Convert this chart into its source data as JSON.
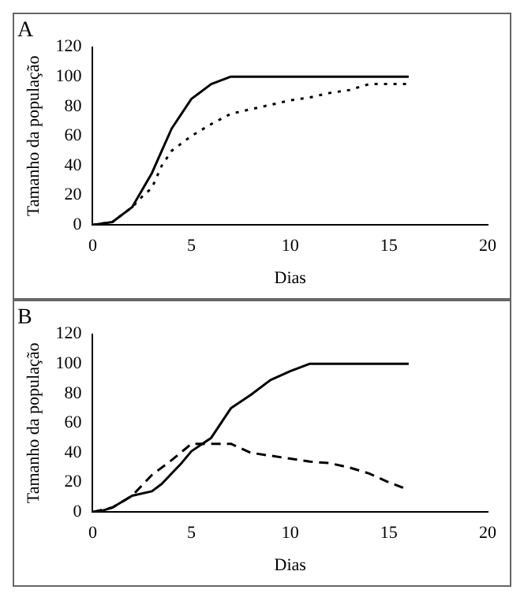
{
  "chart_data": [
    {
      "type": "line",
      "title": "A",
      "xlabel": "Dias",
      "ylabel": "Tamanho da população",
      "xlim": [
        0,
        20
      ],
      "xticks": [
        0,
        5,
        10,
        15,
        20
      ],
      "ylim": [
        0,
        120
      ],
      "yticks": [
        0,
        20,
        40,
        60,
        80,
        100,
        120
      ],
      "grid": false,
      "legend": false,
      "marker": "none",
      "series": [
        {
          "color": "#000000",
          "line_style": "solid",
          "x": [
            0,
            1,
            2,
            3,
            3.5,
            4,
            5,
            6,
            7,
            16
          ],
          "values": [
            0,
            2,
            12,
            35,
            50,
            65,
            85,
            95,
            100,
            100
          ]
        },
        {
          "color": "#000000",
          "line_style": "dotted",
          "x": [
            0,
            1,
            2,
            2.5,
            3,
            3.5,
            4,
            5,
            6,
            7,
            8,
            9,
            10,
            11,
            12,
            13,
            14,
            15,
            16
          ],
          "values": [
            0,
            2,
            12,
            19,
            25,
            40,
            50,
            60,
            68,
            75,
            78,
            81,
            84,
            86,
            89,
            91,
            95,
            95,
            95
          ]
        }
      ]
    },
    {
      "type": "line",
      "title": "B",
      "xlabel": "Dias",
      "ylabel": "Tamanho da população",
      "xlim": [
        0,
        20
      ],
      "xticks": [
        0,
        5,
        10,
        15,
        20
      ],
      "ylim": [
        0,
        120
      ],
      "yticks": [
        0,
        20,
        40,
        60,
        80,
        100,
        120
      ],
      "grid": false,
      "legend": false,
      "marker": "none",
      "series": [
        {
          "color": "#000000",
          "line_style": "solid",
          "x": [
            0,
            0.5,
            1,
            1.5,
            2,
            3,
            3.5,
            4,
            4.5,
            5,
            6,
            6.5,
            7,
            8,
            9,
            10,
            11,
            16
          ],
          "values": [
            0,
            1,
            3,
            7,
            11,
            14,
            19,
            26,
            33,
            41,
            50,
            60,
            70,
            79,
            89,
            95,
            100,
            100
          ]
        },
        {
          "color": "#000000",
          "line_style": "dashed",
          "x": [
            0,
            1,
            2,
            2.5,
            3,
            4,
            5,
            6,
            7,
            8,
            9,
            10,
            11,
            12,
            13,
            14,
            15,
            15.8
          ],
          "values": [
            0,
            3,
            11,
            18,
            25,
            35,
            46,
            46,
            46,
            40,
            38,
            36,
            34,
            33,
            30,
            26,
            20,
            16
          ]
        }
      ]
    }
  ]
}
